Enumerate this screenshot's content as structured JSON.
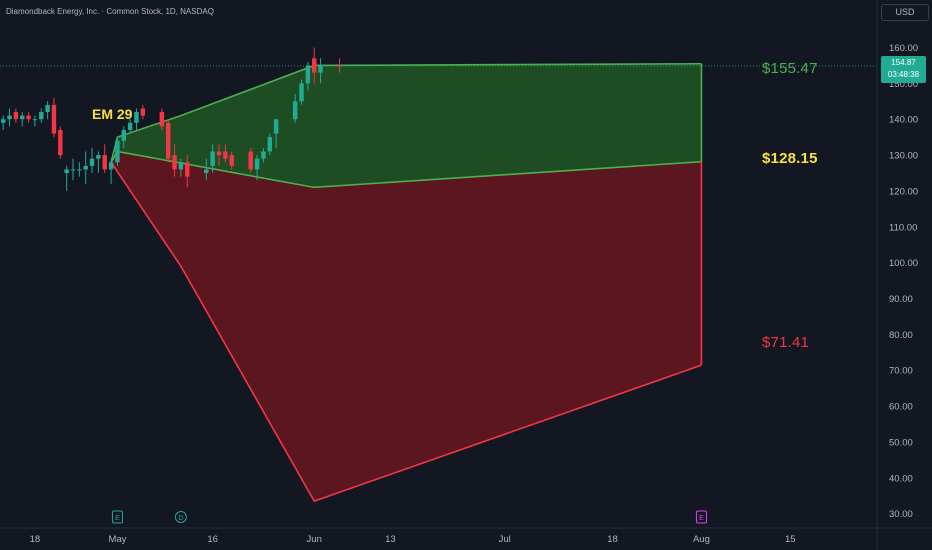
{
  "header": {
    "symbol_title": "Diamondback Energy, Inc. · Common Stock, 1D, NASDAQ"
  },
  "scale": {
    "currency": "USD",
    "current_price": "154.87",
    "countdown": "03:48:38"
  },
  "annotations": {
    "em_label": "EM 29",
    "upper_target": "$155.47",
    "mid_target": "$128.15",
    "lower_target": "$71.41"
  },
  "colors": {
    "background": "#131722",
    "up_candle": "#22ab94",
    "down_candle": "#f23645",
    "green_zone_fill": "#1e4d24",
    "green_zone_stroke": "#4caf50",
    "red_zone_fill": "#5c161f",
    "red_zone_stroke": "#f23645",
    "axis_text": "#b2b5be"
  },
  "chart_data": {
    "type": "candlestick",
    "title": "Diamondback Energy, Inc. · Common Stock, 1D, NASDAQ",
    "currency": "USD",
    "ylim": [
      26,
      166
    ],
    "y_ticks": [
      160,
      150,
      140,
      130,
      120,
      110,
      100,
      90,
      80,
      70,
      60,
      50,
      40,
      30
    ],
    "x_ticks": [
      {
        "label": "18",
        "day": -13
      },
      {
        "label": "May",
        "day": 0
      },
      {
        "label": "16",
        "day": 15
      },
      {
        "label": "Jun",
        "day": 31
      },
      {
        "label": "13",
        "day": 43
      },
      {
        "label": "Jul",
        "day": 61
      },
      {
        "label": "18",
        "day": 78
      },
      {
        "label": "Aug",
        "day": 92
      },
      {
        "label": "15",
        "day": 106
      }
    ],
    "x_range_days": [
      -18.5,
      119.5
    ],
    "candles": [
      {
        "day": -18,
        "o": 139,
        "h": 141,
        "l": 137,
        "c": 140
      },
      {
        "day": -17,
        "o": 140,
        "h": 143,
        "l": 138,
        "c": 141
      },
      {
        "day": -16,
        "o": 142,
        "h": 143,
        "l": 139,
        "c": 140
      },
      {
        "day": -15,
        "o": 140,
        "h": 142,
        "l": 138,
        "c": 141
      },
      {
        "day": -14,
        "o": 141,
        "h": 142,
        "l": 139,
        "c": 140
      },
      {
        "day": -13,
        "o": 140,
        "h": 141,
        "l": 138,
        "c": 140
      },
      {
        "day": -12,
        "o": 140,
        "h": 143,
        "l": 139,
        "c": 142
      },
      {
        "day": -11,
        "o": 142,
        "h": 145,
        "l": 140,
        "c": 144
      },
      {
        "day": -10,
        "o": 144,
        "h": 146,
        "l": 135,
        "c": 136
      },
      {
        "day": -9,
        "o": 137,
        "h": 138,
        "l": 129,
        "c": 130
      },
      {
        "day": -8,
        "o": 125,
        "h": 127,
        "l": 120,
        "c": 126
      },
      {
        "day": -7,
        "o": 126,
        "h": 129,
        "l": 123,
        "c": 126
      },
      {
        "day": -6,
        "o": 126,
        "h": 128,
        "l": 124,
        "c": 126
      },
      {
        "day": -5,
        "o": 126,
        "h": 131,
        "l": 122,
        "c": 127
      },
      {
        "day": -4,
        "o": 127,
        "h": 132,
        "l": 125,
        "c": 129
      },
      {
        "day": -3,
        "o": 129,
        "h": 131,
        "l": 125,
        "c": 130
      },
      {
        "day": -2,
        "o": 130,
        "h": 133,
        "l": 125,
        "c": 126
      },
      {
        "day": -1,
        "o": 126,
        "h": 129,
        "l": 122,
        "c": 128
      },
      {
        "day": 0,
        "o": 128,
        "h": 135,
        "l": 127,
        "c": 134
      },
      {
        "day": 1,
        "o": 134,
        "h": 138,
        "l": 132,
        "c": 137
      },
      {
        "day": 2,
        "o": 137,
        "h": 140,
        "l": 136,
        "c": 139
      },
      {
        "day": 3,
        "o": 139,
        "h": 143,
        "l": 137,
        "c": 142
      },
      {
        "day": 4,
        "o": 143,
        "h": 144,
        "l": 140,
        "c": 141
      },
      {
        "day": 7,
        "o": 142,
        "h": 143,
        "l": 137,
        "c": 138
      },
      {
        "day": 8,
        "o": 139,
        "h": 140,
        "l": 128,
        "c": 129
      },
      {
        "day": 9,
        "o": 130,
        "h": 133,
        "l": 124,
        "c": 126
      },
      {
        "day": 10,
        "o": 126,
        "h": 129,
        "l": 124,
        "c": 128
      },
      {
        "day": 11,
        "o": 128,
        "h": 130,
        "l": 121,
        "c": 124
      },
      {
        "day": 14,
        "o": 125,
        "h": 129,
        "l": 123,
        "c": 126
      },
      {
        "day": 15,
        "o": 127,
        "h": 133,
        "l": 125,
        "c": 131
      },
      {
        "day": 16,
        "o": 131,
        "h": 133,
        "l": 127,
        "c": 130
      },
      {
        "day": 17,
        "o": 131,
        "h": 133,
        "l": 128,
        "c": 129
      },
      {
        "day": 18,
        "o": 130,
        "h": 131,
        "l": 126,
        "c": 127
      },
      {
        "day": 21,
        "o": 131,
        "h": 132,
        "l": 125,
        "c": 126
      },
      {
        "day": 22,
        "o": 126,
        "h": 130,
        "l": 123,
        "c": 129
      },
      {
        "day": 23,
        "o": 129,
        "h": 132,
        "l": 128,
        "c": 131
      },
      {
        "day": 24,
        "o": 131,
        "h": 136,
        "l": 130,
        "c": 135
      },
      {
        "day": 25,
        "o": 136,
        "h": 140,
        "l": 132,
        "c": 140
      },
      {
        "day": 28,
        "o": 140,
        "h": 147,
        "l": 139,
        "c": 145
      },
      {
        "day": 29,
        "o": 145,
        "h": 151,
        "l": 144,
        "c": 150
      },
      {
        "day": 30,
        "o": 150,
        "h": 156,
        "l": 148,
        "c": 155
      },
      {
        "day": 31,
        "o": 157,
        "h": 160,
        "l": 150,
        "c": 153
      },
      {
        "day": 32,
        "o": 153,
        "h": 157,
        "l": 150,
        "c": 155
      },
      {
        "day": 35,
        "o": 155,
        "h": 157,
        "l": 153,
        "c": 154.87
      }
    ],
    "expected_move": {
      "label": "EM 29",
      "start_day": -1,
      "end_day": 92,
      "green_zone": {
        "top": [
          [
            -1,
            128
          ],
          [
            0,
            135
          ],
          [
            10,
            141
          ],
          [
            31,
            155
          ],
          [
            92,
            155.47
          ]
        ],
        "bottom": [
          [
            -1,
            128
          ],
          [
            0,
            131
          ],
          [
            31,
            121
          ],
          [
            92,
            128.15
          ]
        ]
      },
      "red_zone": {
        "top": [
          [
            -1,
            128
          ],
          [
            0,
            131
          ],
          [
            31,
            121
          ],
          [
            92,
            128.15
          ]
        ],
        "bottom": [
          [
            -1,
            128
          ],
          [
            10,
            99
          ],
          [
            31,
            33.5
          ],
          [
            92,
            71.41
          ]
        ]
      },
      "targets": {
        "upper": 155.47,
        "mid": 128.15,
        "lower": 71.41
      }
    },
    "event_markers": [
      {
        "letter": "E",
        "day": 0
      },
      {
        "letter": "D",
        "day": 10
      },
      {
        "letter": "E",
        "day": 92
      }
    ]
  }
}
